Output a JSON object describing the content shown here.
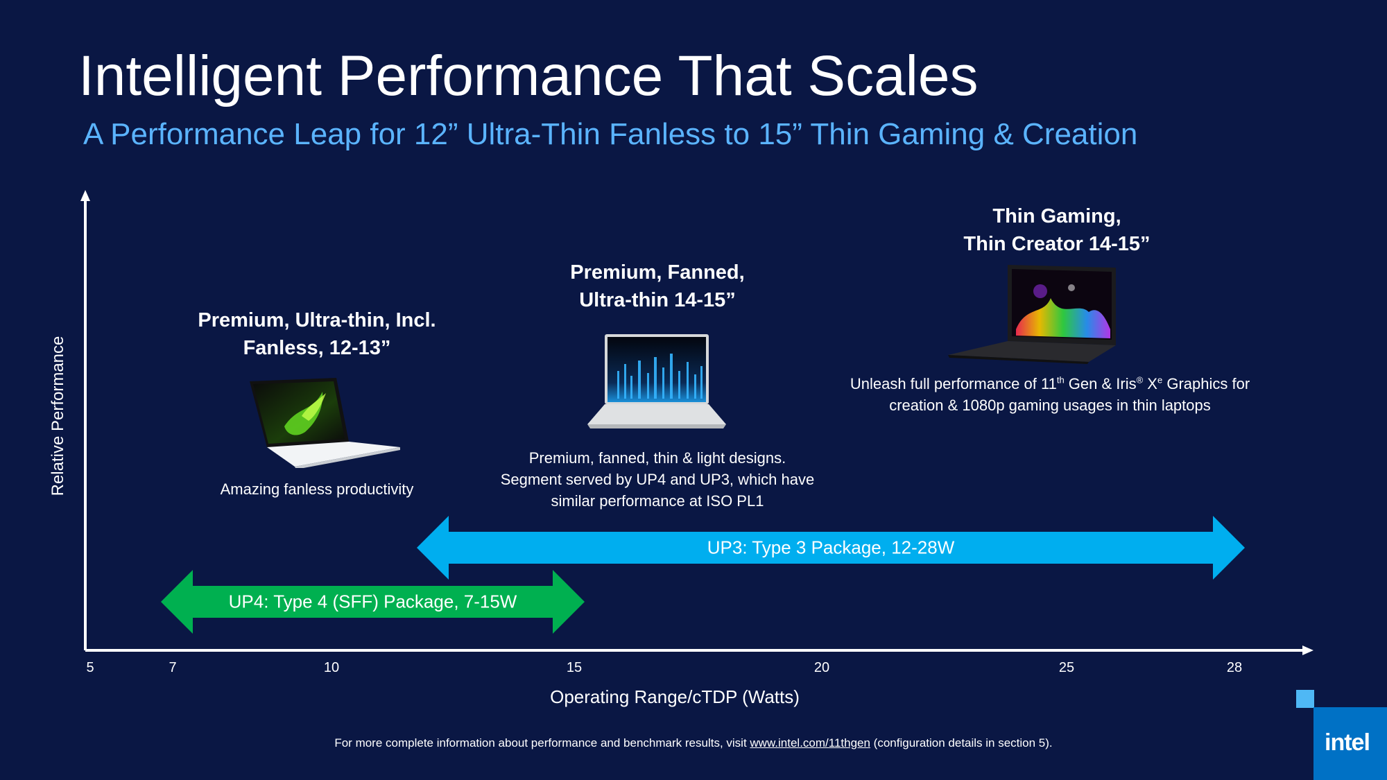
{
  "slide": {
    "title": "Intelligent Performance That Scales",
    "subtitle": "A Performance Leap for 12” Ultra-Thin Fanless to 15” Thin Gaming & Creation"
  },
  "segments": [
    {
      "title_line1": "Premium, Ultra-thin, Incl.",
      "title_line2": "Fanless, 12-13”",
      "description_line1": "Amazing fanless productivity",
      "image": "white-ultrathin-laptop"
    },
    {
      "title_line1": "Premium, Fanned,",
      "title_line2": "Ultra-thin 14-15”",
      "description_line1": "Premium, fanned, thin & light designs.",
      "description_line2": "Segment served by UP4 and UP3, which have",
      "description_line3": "similar performance at ISO PL1",
      "image": "silver-fanned-laptop"
    },
    {
      "title_line1": "Thin Gaming,",
      "title_line2": "Thin Creator 14-15”",
      "description_part1": "Unleash full performance of 11",
      "description_sup1": "th",
      "description_part2": " Gen & Iris",
      "description_sup2": "®",
      "description_part3": " X",
      "description_sup3": "e",
      "description_part4": " Graphics for",
      "description_line2": "creation & 1080p gaming usages in thin laptops",
      "image": "black-gaming-laptop"
    }
  ],
  "chart_data": {
    "type": "range",
    "xlabel": "Operating Range/cTDP (Watts)",
    "ylabel": "Relative Performance",
    "xticks": [
      "5",
      "7",
      "10",
      "15",
      "20",
      "25",
      "28"
    ],
    "ranges": [
      {
        "name": "UP3: Type 3 Package, 12-28W",
        "x_start": 12,
        "x_end": 28,
        "color": "#00aeef"
      },
      {
        "name": "UP4: Type 4 (SFF) Package, 7-15W",
        "x_start": 7,
        "x_end": 15,
        "color": "#00b050"
      }
    ]
  },
  "footnote": {
    "before": "For more complete information about performance and benchmark results, visit ",
    "link": "www.intel.com/11thgen",
    "after": " (configuration details in section 5)."
  },
  "brand": {
    "logo_text": "intel",
    "color": "#0071c5"
  }
}
